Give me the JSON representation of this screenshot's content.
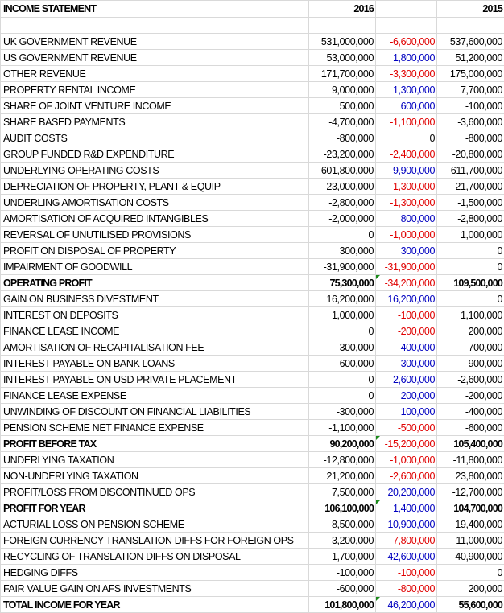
{
  "header": {
    "title": "INCOME STATEMENT",
    "col_2016": "2016",
    "col_diff": "",
    "col_2015": "2015"
  },
  "colors": {
    "positive": "#0000c0",
    "negative": "#e00000",
    "flag": "#1a8a1a"
  },
  "rows": [
    {
      "label": "UK GOVERNMENT REVENUE",
      "y2016": "531,000,000",
      "diff": "-6,600,000",
      "y2015": "537,600,000"
    },
    {
      "label": "US GOVERNMENT REVENUE",
      "y2016": "53,000,000",
      "diff": "1,800,000",
      "y2015": "51,200,000"
    },
    {
      "label": "OTHER REVENUE",
      "y2016": "171,700,000",
      "diff": "-3,300,000",
      "y2015": "175,000,000"
    },
    {
      "label": "PROPERTY RENTAL INCOME",
      "y2016": "9,000,000",
      "diff": "1,300,000",
      "y2015": "7,700,000"
    },
    {
      "label": "SHARE OF JOINT VENTURE INCOME",
      "y2016": "500,000",
      "diff": "600,000",
      "y2015": "-100,000"
    },
    {
      "label": "SHARE BASED PAYMENTS",
      "y2016": "-4,700,000",
      "diff": "-1,100,000",
      "y2015": "-3,600,000"
    },
    {
      "label": "AUDIT COSTS",
      "y2016": "-800,000",
      "diff": "0",
      "y2015": "-800,000"
    },
    {
      "label": "GROUP FUNDED R&D EXPENDITURE",
      "y2016": "-23,200,000",
      "diff": "-2,400,000",
      "y2015": "-20,800,000"
    },
    {
      "label": "UNDERLYING OPERATING COSTS",
      "y2016": "-601,800,000",
      "diff": "9,900,000",
      "y2015": "-611,700,000"
    },
    {
      "label": "DEPRECIATION OF PROPERTY, PLANT & EQUIP",
      "y2016": "-23,000,000",
      "diff": "-1,300,000",
      "y2015": "-21,700,000"
    },
    {
      "label": "UNDERLING AMORTISATION COSTS",
      "y2016": "-2,800,000",
      "diff": "-1,300,000",
      "y2015": "-1,500,000"
    },
    {
      "label": "AMORTISATION OF ACQUIRED INTANGIBLES",
      "y2016": "-2,000,000",
      "diff": "800,000",
      "y2015": "-2,800,000"
    },
    {
      "label": "REVERSAL OF UNUTILISED PROVISIONS",
      "y2016": "0",
      "diff": "-1,000,000",
      "y2015": "1,000,000"
    },
    {
      "label": "PROFIT ON DISPOSAL OF PROPERTY",
      "y2016": "300,000",
      "diff": "300,000",
      "y2015": "0"
    },
    {
      "label": "IMPAIRMENT OF GOODWILL",
      "y2016": "-31,900,000",
      "diff": "-31,900,000",
      "y2015": "0"
    },
    {
      "label": "OPERATING PROFIT",
      "y2016": "75,300,000",
      "diff": "-34,200,000",
      "y2015": "109,500,000",
      "bold": true
    },
    {
      "label": "GAIN ON BUSINESS DIVESTMENT",
      "y2016": "16,200,000",
      "diff": "16,200,000",
      "y2015": "0"
    },
    {
      "label": "INTEREST ON DEPOSITS",
      "y2016": "1,000,000",
      "diff": "-100,000",
      "y2015": "1,100,000"
    },
    {
      "label": "FINANCE LEASE INCOME",
      "y2016": "0",
      "diff": "-200,000",
      "y2015": "200,000"
    },
    {
      "label": "AMORTISATION OF RECAPITALISATION FEE",
      "y2016": "-300,000",
      "diff": "400,000",
      "y2015": "-700,000"
    },
    {
      "label": "INTEREST PAYABLE ON BANK LOANS",
      "y2016": "-600,000",
      "diff": "300,000",
      "y2015": "-900,000"
    },
    {
      "label": "INTEREST PAYABLE ON USD PRIVATE PLACEMENT",
      "y2016": "0",
      "diff": "2,600,000",
      "y2015": "-2,600,000"
    },
    {
      "label": "FINANCE LEASE EXPENSE",
      "y2016": "0",
      "diff": "200,000",
      "y2015": "-200,000"
    },
    {
      "label": "UNWINDING OF DISCOUNT ON FINANCIAL LIABILITIES",
      "y2016": "-300,000",
      "diff": "100,000",
      "y2015": "-400,000"
    },
    {
      "label": "PENSION SCHEME NET FINANCE EXPENSE",
      "y2016": "-1,100,000",
      "diff": "-500,000",
      "y2015": "-600,000"
    },
    {
      "label": "PROFIT BEFORE TAX",
      "y2016": "90,200,000",
      "diff": "-15,200,000",
      "y2015": "105,400,000",
      "bold": true
    },
    {
      "label": "UNDERLYING TAXATION",
      "y2016": "-12,800,000",
      "diff": "-1,000,000",
      "y2015": "-11,800,000"
    },
    {
      "label": "NON-UNDERLYING TAXATION",
      "y2016": "21,200,000",
      "diff": "-2,600,000",
      "y2015": "23,800,000"
    },
    {
      "label": "PROFIT/LOSS FROM DISCONTINUED OPS",
      "y2016": "7,500,000",
      "diff": "20,200,000",
      "y2015": "-12,700,000"
    },
    {
      "label": "PROFIT FOR YEAR",
      "y2016": "106,100,000",
      "diff": "1,400,000",
      "y2015": "104,700,000",
      "bold": true
    },
    {
      "label": "ACTURIAL LOSS ON PENSION SCHEME",
      "y2016": "-8,500,000",
      "diff": "10,900,000",
      "y2015": "-19,400,000"
    },
    {
      "label": "FOREIGN CURRENCY TRANSLATION DIFFS FOR FOREIGN OPS",
      "y2016": "3,200,000",
      "diff": "-7,800,000",
      "y2015": "11,000,000"
    },
    {
      "label": "RECYCLING OF TRANSLATION DIFFS ON DISPOSAL",
      "y2016": "1,700,000",
      "diff": "42,600,000",
      "y2015": "-40,900,000"
    },
    {
      "label": "HEDGING DIFFS",
      "y2016": "-100,000",
      "diff": "-100,000",
      "y2015": "0"
    },
    {
      "label": "FAIR VALUE GAIN ON AFS INVESTMENTS",
      "y2016": "-600,000",
      "diff": "-800,000",
      "y2015": "200,000"
    },
    {
      "label": "TOTAL INCOME FOR YEAR",
      "y2016": "101,800,000",
      "diff": "46,200,000",
      "y2015": "55,600,000",
      "bold": true
    }
  ]
}
